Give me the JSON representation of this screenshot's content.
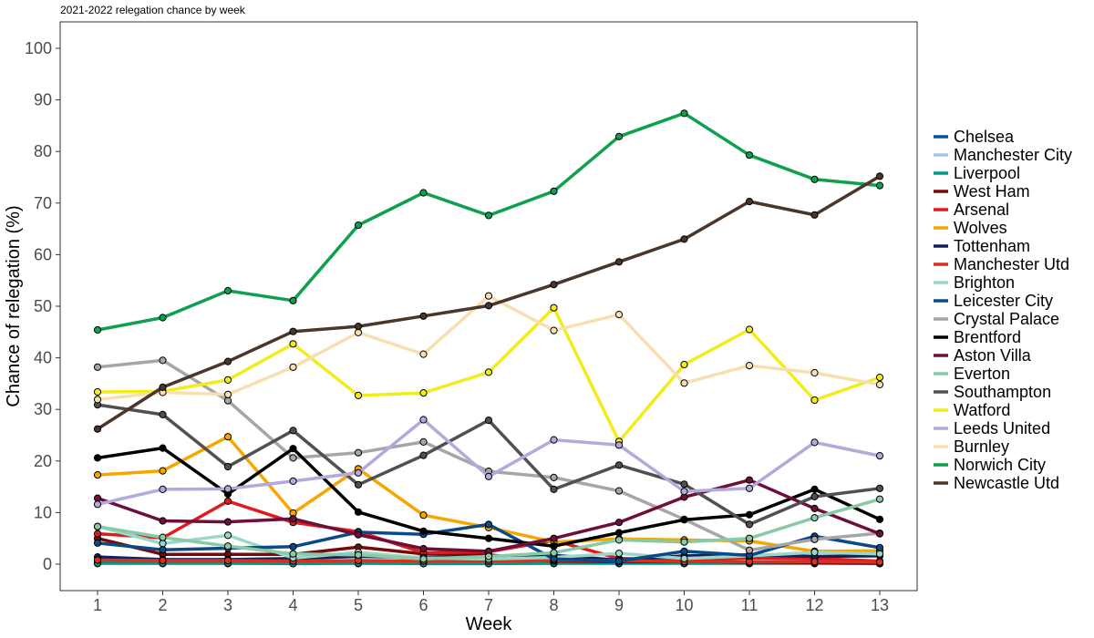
{
  "chart_data": {
    "type": "line",
    "title": "2021-2022 relegation chance by week",
    "xlabel": "Week",
    "ylabel": "Chance of relegation (%)",
    "x": [
      1,
      2,
      3,
      4,
      5,
      6,
      7,
      8,
      9,
      10,
      11,
      12,
      13
    ],
    "x_ticks": [
      "1",
      "2",
      "3",
      "4",
      "5",
      "6",
      "7",
      "8",
      "9",
      "10",
      "11",
      "12",
      "13"
    ],
    "ylim": [
      0,
      100
    ],
    "y_ticks": [
      "0",
      "10",
      "20",
      "30",
      "40",
      "50",
      "60",
      "70",
      "80",
      "90",
      "100"
    ],
    "grid": false,
    "legend_position": "right",
    "series": [
      {
        "name": "Chelsea",
        "color": "#08519c",
        "values": [
          0.3,
          0.2,
          0.3,
          0.2,
          0.3,
          0.2,
          0.2,
          0.4,
          0.3,
          0.4,
          0.3,
          0.2,
          0.2
        ]
      },
      {
        "name": "Manchester City",
        "color": "#9ecae1",
        "values": [
          0.1,
          0.1,
          0.1,
          0.1,
          0.1,
          0.1,
          0.1,
          0.1,
          0.1,
          0.1,
          0.1,
          0.1,
          0.1
        ]
      },
      {
        "name": "Liverpool",
        "color": "#009688",
        "values": [
          0.2,
          0.2,
          0.2,
          0.1,
          0.2,
          0.1,
          0.1,
          0.2,
          0.2,
          0.2,
          0.2,
          0.2,
          0.1
        ]
      },
      {
        "name": "West Ham",
        "color": "#7a0a0a",
        "values": [
          5.0,
          1.9,
          1.9,
          1.9,
          3.3,
          2.0,
          1.8,
          0.6,
          0.5,
          0.5,
          0.4,
          0.3,
          0.2
        ]
      },
      {
        "name": "Arsenal",
        "color": "#e31a1c",
        "values": [
          5.9,
          5.1,
          12.2,
          8.1,
          6.3,
          2.2,
          2.4,
          4.6,
          1.1,
          0.9,
          1.2,
          1.1,
          0.6
        ]
      },
      {
        "name": "Wolves",
        "color": "#f7a600",
        "values": [
          17.3,
          18.1,
          24.7,
          9.9,
          18.5,
          9.5,
          7.1,
          4.3,
          4.9,
          4.7,
          4.5,
          2.5,
          2.6
        ]
      },
      {
        "name": "Tottenham",
        "color": "#14205c",
        "values": [
          1.4,
          0.9,
          0.9,
          1.1,
          1.5,
          1.3,
          1.4,
          1.7,
          0.8,
          1.6,
          1.8,
          1.5,
          1.6
        ]
      },
      {
        "name": "Manchester Utd",
        "color": "#d7301f",
        "values": [
          0.8,
          0.7,
          0.7,
          0.6,
          0.7,
          0.6,
          0.6,
          0.8,
          0.7,
          0.5,
          0.5,
          0.5,
          0.4
        ]
      },
      {
        "name": "Brighton",
        "color": "#99d8c9",
        "values": [
          7.3,
          4.0,
          5.6,
          1.2,
          2.3,
          1.2,
          1.0,
          1.3,
          2.1,
          1.1,
          1.6,
          2.3,
          2.0
        ]
      },
      {
        "name": "Leicester City",
        "color": "#0a4a8a",
        "values": [
          4.1,
          2.8,
          3.1,
          3.4,
          6.2,
          5.8,
          7.7,
          1.0,
          0.6,
          2.5,
          1.7,
          5.4,
          3.2
        ]
      },
      {
        "name": "Crystal Palace",
        "color": "#a6a6a6",
        "values": [
          38.2,
          39.5,
          31.7,
          20.6,
          21.6,
          23.7,
          18.0,
          16.8,
          14.2,
          8.7,
          2.7,
          4.8,
          6.0
        ]
      },
      {
        "name": "Brentford",
        "color": "#000000",
        "values": [
          20.6,
          22.5,
          13.6,
          22.4,
          10.1,
          6.4,
          5.0,
          3.5,
          6.1,
          8.6,
          9.6,
          14.5,
          8.7
        ]
      },
      {
        "name": "Aston Villa",
        "color": "#6e0e3a",
        "values": [
          12.8,
          8.4,
          8.2,
          8.8,
          5.7,
          3.0,
          2.5,
          5.0,
          8.1,
          13.0,
          16.3,
          10.8,
          5.9
        ]
      },
      {
        "name": "Everton",
        "color": "#88c9a6",
        "values": [
          7.3,
          5.2,
          3.5,
          2.0,
          1.8,
          1.0,
          1.5,
          2.2,
          4.7,
          4.3,
          5.0,
          9.0,
          12.6
        ]
      },
      {
        "name": "Southampton",
        "color": "#505050",
        "values": [
          30.9,
          29.0,
          18.9,
          25.9,
          15.4,
          21.1,
          27.9,
          14.5,
          19.2,
          15.5,
          7.7,
          13.1,
          14.7
        ]
      },
      {
        "name": "Watford",
        "color": "#f2ec1a",
        "values": [
          33.4,
          33.5,
          35.7,
          42.7,
          32.7,
          33.2,
          37.2,
          49.7,
          23.8,
          38.7,
          45.5,
          31.8,
          36.2
        ]
      },
      {
        "name": "Leeds United",
        "color": "#b3a9dd",
        "values": [
          11.6,
          14.5,
          14.6,
          16.1,
          17.7,
          28.0,
          17.0,
          24.1,
          23.1,
          14.1,
          14.7,
          23.6,
          21.0
        ]
      },
      {
        "name": "Burnley",
        "color": "#f8dfb2",
        "values": [
          31.9,
          33.3,
          32.9,
          38.2,
          44.9,
          40.7,
          52.0,
          45.3,
          48.4,
          35.1,
          38.5,
          37.1,
          34.8
        ]
      },
      {
        "name": "Norwich City",
        "color": "#0e9f4f",
        "values": [
          45.4,
          47.8,
          53.0,
          51.1,
          65.7,
          72.0,
          67.6,
          72.3,
          82.9,
          87.4,
          79.3,
          74.6,
          73.4
        ]
      },
      {
        "name": "Newcastle Utd",
        "color": "#4a362a",
        "values": [
          26.2,
          34.3,
          39.3,
          45.1,
          46.1,
          48.1,
          50.1,
          54.2,
          58.6,
          63.0,
          70.3,
          67.7,
          75.2
        ]
      }
    ]
  }
}
